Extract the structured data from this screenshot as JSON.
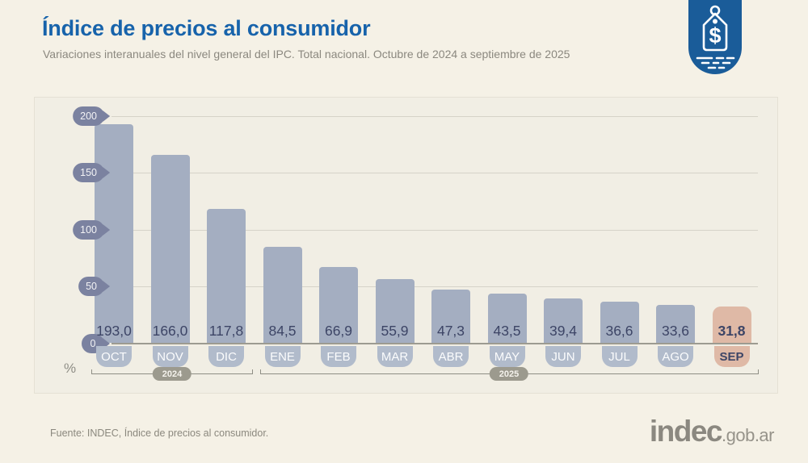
{
  "header": {
    "title": "Índice de precios al consumidor",
    "subtitle": "Variaciones interanuales del nivel general del IPC. Total nacional. Octubre de 2024 a septiembre de 2025"
  },
  "chart_data": {
    "type": "bar",
    "title": "Índice de precios al consumidor",
    "subtitle": "Variaciones interanuales del nivel general del IPC. Total nacional. Octubre de 2024 a septiembre de 2025",
    "unit_label": "%",
    "categories": [
      "OCT",
      "NOV",
      "DIC",
      "ENE",
      "FEB",
      "MAR",
      "ABR",
      "MAY",
      "JUN",
      "JUL",
      "AGO",
      "SEP"
    ],
    "values": [
      193.0,
      166.0,
      117.8,
      84.5,
      66.9,
      55.9,
      47.3,
      43.5,
      39.4,
      36.6,
      33.6,
      31.8
    ],
    "value_labels": [
      "193,0",
      "166,0",
      "117,8",
      "84,5",
      "66,9",
      "55,9",
      "47,3",
      "43,5",
      "39,4",
      "36,6",
      "33,6",
      "31,8"
    ],
    "highlight_index": 11,
    "yticks": [
      200,
      150,
      100,
      50,
      0
    ],
    "ylim": [
      0,
      200
    ],
    "grid": true,
    "year_groups": [
      {
        "label": "2024",
        "from": 0,
        "to": 2
      },
      {
        "label": "2025",
        "from": 3,
        "to": 11
      }
    ]
  },
  "colors": {
    "accent_blue": "#1763AB",
    "badge_blue": "#1A5C99",
    "bar": "#A4AEC1",
    "bar_highlight": "#DFB9A6",
    "value_text": "#3D4566",
    "axis_badge": "#7B82A0",
    "month_badge": "#B1BBCB",
    "year_pill": "#9C9A8E",
    "background": "#F5F1E6",
    "panel": "#F1EEE4"
  },
  "footer": {
    "source": "Fuente: INDEC, Índice de precios al consumidor.",
    "logo_main": "indec",
    "logo_suffix": ".gob.ar"
  }
}
